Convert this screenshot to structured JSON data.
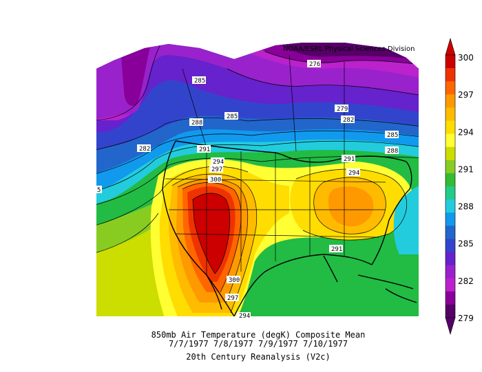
{
  "credit": "NOAA/ESRL Physical Sciences Division",
  "caption": {
    "line1": "850mb Air Temperature (degK) Composite Mean",
    "line2": "7/7/1977 7/8/1977 7/9/1977 7/10/1977",
    "line3": "20th Century Reanalysis (V2c)"
  },
  "colorbar": {
    "ticks": [
      "300",
      "297",
      "294",
      "291",
      "288",
      "285",
      "282",
      "279"
    ],
    "colors": [
      "#cc0000",
      "#ee3300",
      "#ff6600",
      "#ff9900",
      "#ffbb00",
      "#ffdd00",
      "#ffff33",
      "#ccdd00",
      "#88cc22",
      "#33bb33",
      "#22cc88",
      "#22ccdd",
      "#1199ee",
      "#2266cc",
      "#3344cc",
      "#6622cc",
      "#9922cc",
      "#bb22cc",
      "#880099",
      "#550066"
    ]
  },
  "contour_labels": [
    {
      "text": "276"
    },
    {
      "text": "285"
    },
    {
      "text": "279"
    },
    {
      "text": "282"
    },
    {
      "text": "285"
    },
    {
      "text": "288"
    },
    {
      "text": "285"
    },
    {
      "text": "288"
    },
    {
      "text": "282"
    },
    {
      "text": "291"
    },
    {
      "text": "294"
    },
    {
      "text": "297"
    },
    {
      "text": "300"
    },
    {
      "text": "291"
    },
    {
      "text": "294"
    },
    {
      "text": "291"
    },
    {
      "text": "300"
    },
    {
      "text": "297"
    },
    {
      "text": "294"
    },
    {
      "text": "5"
    }
  ]
}
